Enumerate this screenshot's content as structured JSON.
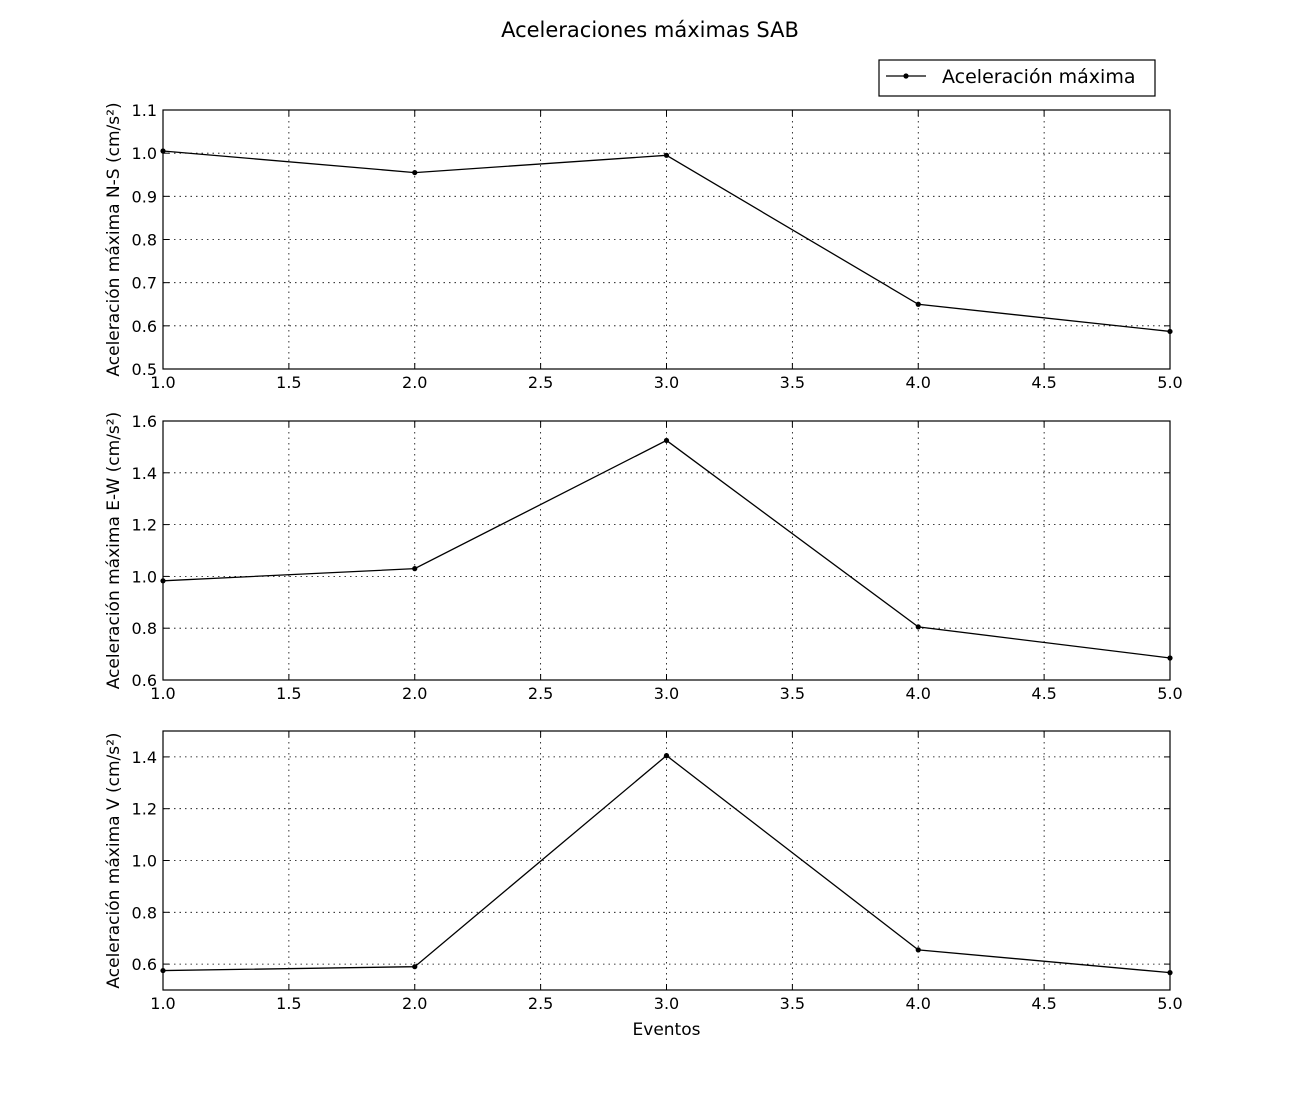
{
  "chart_data": {
    "type": "line",
    "title": "Aceleraciones máximas SAB",
    "legend": {
      "label": "Aceleración máxima",
      "placement": "top-right"
    },
    "shared_xlabel": "Eventos",
    "line_color": "#000000",
    "subplots": [
      {
        "id": "ns",
        "ylabel": "Aceleración máxima N-S (cm/s²)",
        "xlabel": "",
        "xlim": [
          1.0,
          5.0
        ],
        "ylim": [
          0.5,
          1.1
        ],
        "xticks": [
          "1.0",
          "1.5",
          "2.0",
          "2.5",
          "3.0",
          "3.5",
          "4.0",
          "4.5",
          "5.0"
        ],
        "yticks": [
          "0.5",
          "0.6",
          "0.7",
          "0.8",
          "0.9",
          "1.0",
          "1.1"
        ],
        "grid": true,
        "x": [
          1,
          2,
          3,
          4,
          5
        ],
        "y": [
          1.005,
          0.955,
          0.995,
          0.65,
          0.587
        ]
      },
      {
        "id": "ew",
        "ylabel": "Aceleración máxima E-W (cm/s²)",
        "xlabel": "",
        "xlim": [
          1.0,
          5.0
        ],
        "ylim": [
          0.6,
          1.6
        ],
        "xticks": [
          "1.0",
          "1.5",
          "2.0",
          "2.5",
          "3.0",
          "3.5",
          "4.0",
          "4.5",
          "5.0"
        ],
        "yticks": [
          "0.6",
          "0.8",
          "1.0",
          "1.2",
          "1.4",
          "1.6"
        ],
        "grid": true,
        "x": [
          1,
          2,
          3,
          4,
          5
        ],
        "y": [
          0.983,
          1.03,
          1.525,
          0.805,
          0.685
        ]
      },
      {
        "id": "v",
        "ylabel": "Aceleración máxima V (cm/s²)",
        "xlabel": "Eventos",
        "xlim": [
          1.0,
          5.0
        ],
        "ylim": [
          0.5,
          1.5
        ],
        "xticks": [
          "1.0",
          "1.5",
          "2.0",
          "2.5",
          "3.0",
          "3.5",
          "4.0",
          "4.5",
          "5.0"
        ],
        "yticks": [
          "0.6",
          "0.8",
          "1.0",
          "1.2",
          "1.4"
        ],
        "grid": true,
        "x": [
          1,
          2,
          3,
          4,
          5
        ],
        "y": [
          0.575,
          0.59,
          1.405,
          0.655,
          0.567
        ]
      }
    ]
  }
}
